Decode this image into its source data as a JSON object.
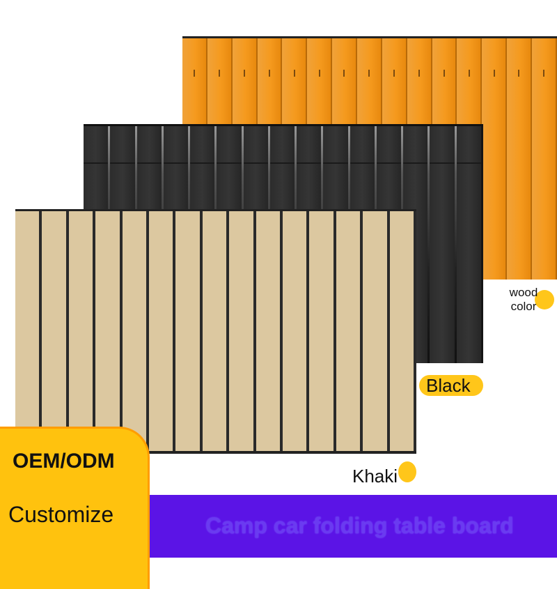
{
  "boards": [
    {
      "name": "wood",
      "slat_count": 15
    },
    {
      "name": "black",
      "slat_count": 15
    },
    {
      "name": "khaki",
      "slat_count": 15
    }
  ],
  "labels": {
    "wood": "wood color",
    "black": "Black",
    "khaki": "Khaki"
  },
  "badge": {
    "line1": "OEM/ODM",
    "line2": "Customize"
  },
  "banner": {
    "title": "Camp car folding table board"
  },
  "colors": {
    "wood": "#f59a1e",
    "black": "#2c2c2c",
    "khaki": "#dcc8a0",
    "badge": "#ffc20e",
    "banner": "#5b14e6",
    "label_dot": "#ffc61a"
  }
}
